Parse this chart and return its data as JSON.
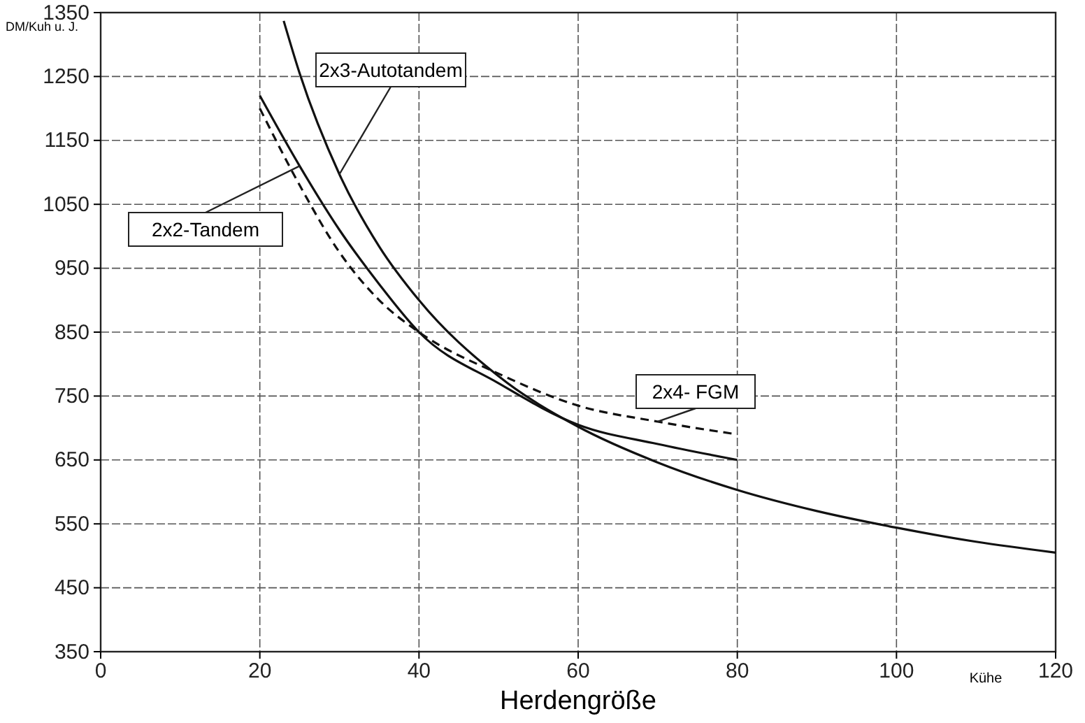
{
  "chart_data": {
    "type": "line",
    "xlabel": "Herdengröße",
    "ylabel": "DM/Kuh u. J.",
    "annotations": [
      "Kühe"
    ],
    "xlim": [
      0,
      120
    ],
    "xticks": [
      0,
      20,
      40,
      60,
      80,
      100,
      120
    ],
    "ylim": [
      350,
      1350
    ],
    "yticks": [
      350,
      450,
      550,
      650,
      750,
      850,
      950,
      1050,
      1150,
      1250,
      1350
    ],
    "grid": true,
    "legend": false,
    "marker": "none",
    "series": [
      {
        "name": "2x3-Autotandem",
        "color": "#111111",
        "line_style": "solid",
        "x": [
          23,
          25,
          30,
          35,
          40,
          50,
          60,
          70,
          80,
          90,
          100,
          110,
          120
        ],
        "values": [
          1337,
          1255,
          1097,
          984,
          900,
          781,
          702,
          646,
          603,
          570,
          544,
          522,
          505
        ]
      },
      {
        "name": "2x2-Tandem",
        "color": "#111111",
        "line_style": "solid",
        "x": [
          20,
          25,
          30,
          35,
          40,
          50,
          60,
          70,
          80
        ],
        "values": [
          1220,
          1110,
          1010,
          925,
          850,
          770,
          705,
          675,
          650
        ]
      },
      {
        "name": "2x4- FGM",
        "color": "#111111",
        "line_style": "dashed",
        "x": [
          20,
          25,
          30,
          35,
          40,
          50,
          60,
          70,
          80
        ],
        "values": [
          1200,
          1080,
          975,
          900,
          850,
          785,
          735,
          710,
          690
        ]
      }
    ]
  }
}
